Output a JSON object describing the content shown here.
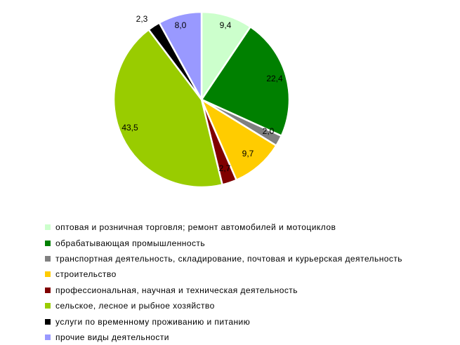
{
  "chart_data": {
    "type": "pie",
    "title": "",
    "start_angle_deg": 0,
    "direction": "clockwise",
    "legend_position": "bottom",
    "slices": [
      {
        "name": "оптовая и розничная торговля; ремонт автомобилей и мотоциклов",
        "value": 9.4,
        "label": "9,4",
        "color": "#ccffcc"
      },
      {
        "name": "обрабатывающая промышленность",
        "value": 22.4,
        "label": "22,4",
        "color": "#008000"
      },
      {
        "name": "транспортная деятельность, складирование, почтовая и курьерская деятельность",
        "value": 2.0,
        "label": "2,0",
        "color": "#808080"
      },
      {
        "name": "строительство",
        "value": 9.7,
        "label": "9,7",
        "color": "#ffcc00"
      },
      {
        "name": "профессиональная, научная и техническая деятельность",
        "value": 2.7,
        "label": "2,7",
        "color": "#800000"
      },
      {
        "name": "сельское, лесное и рыбное хозяйство",
        "value": 43.5,
        "label": "43,5",
        "color": "#99cc00"
      },
      {
        "name": "услуги по временному проживанию и питанию",
        "value": 2.3,
        "label": "2,3",
        "color": "#000000"
      },
      {
        "name": "прочие виды деятельности",
        "value": 8.0,
        "label": "8,0",
        "color": "#9999ff"
      }
    ]
  }
}
